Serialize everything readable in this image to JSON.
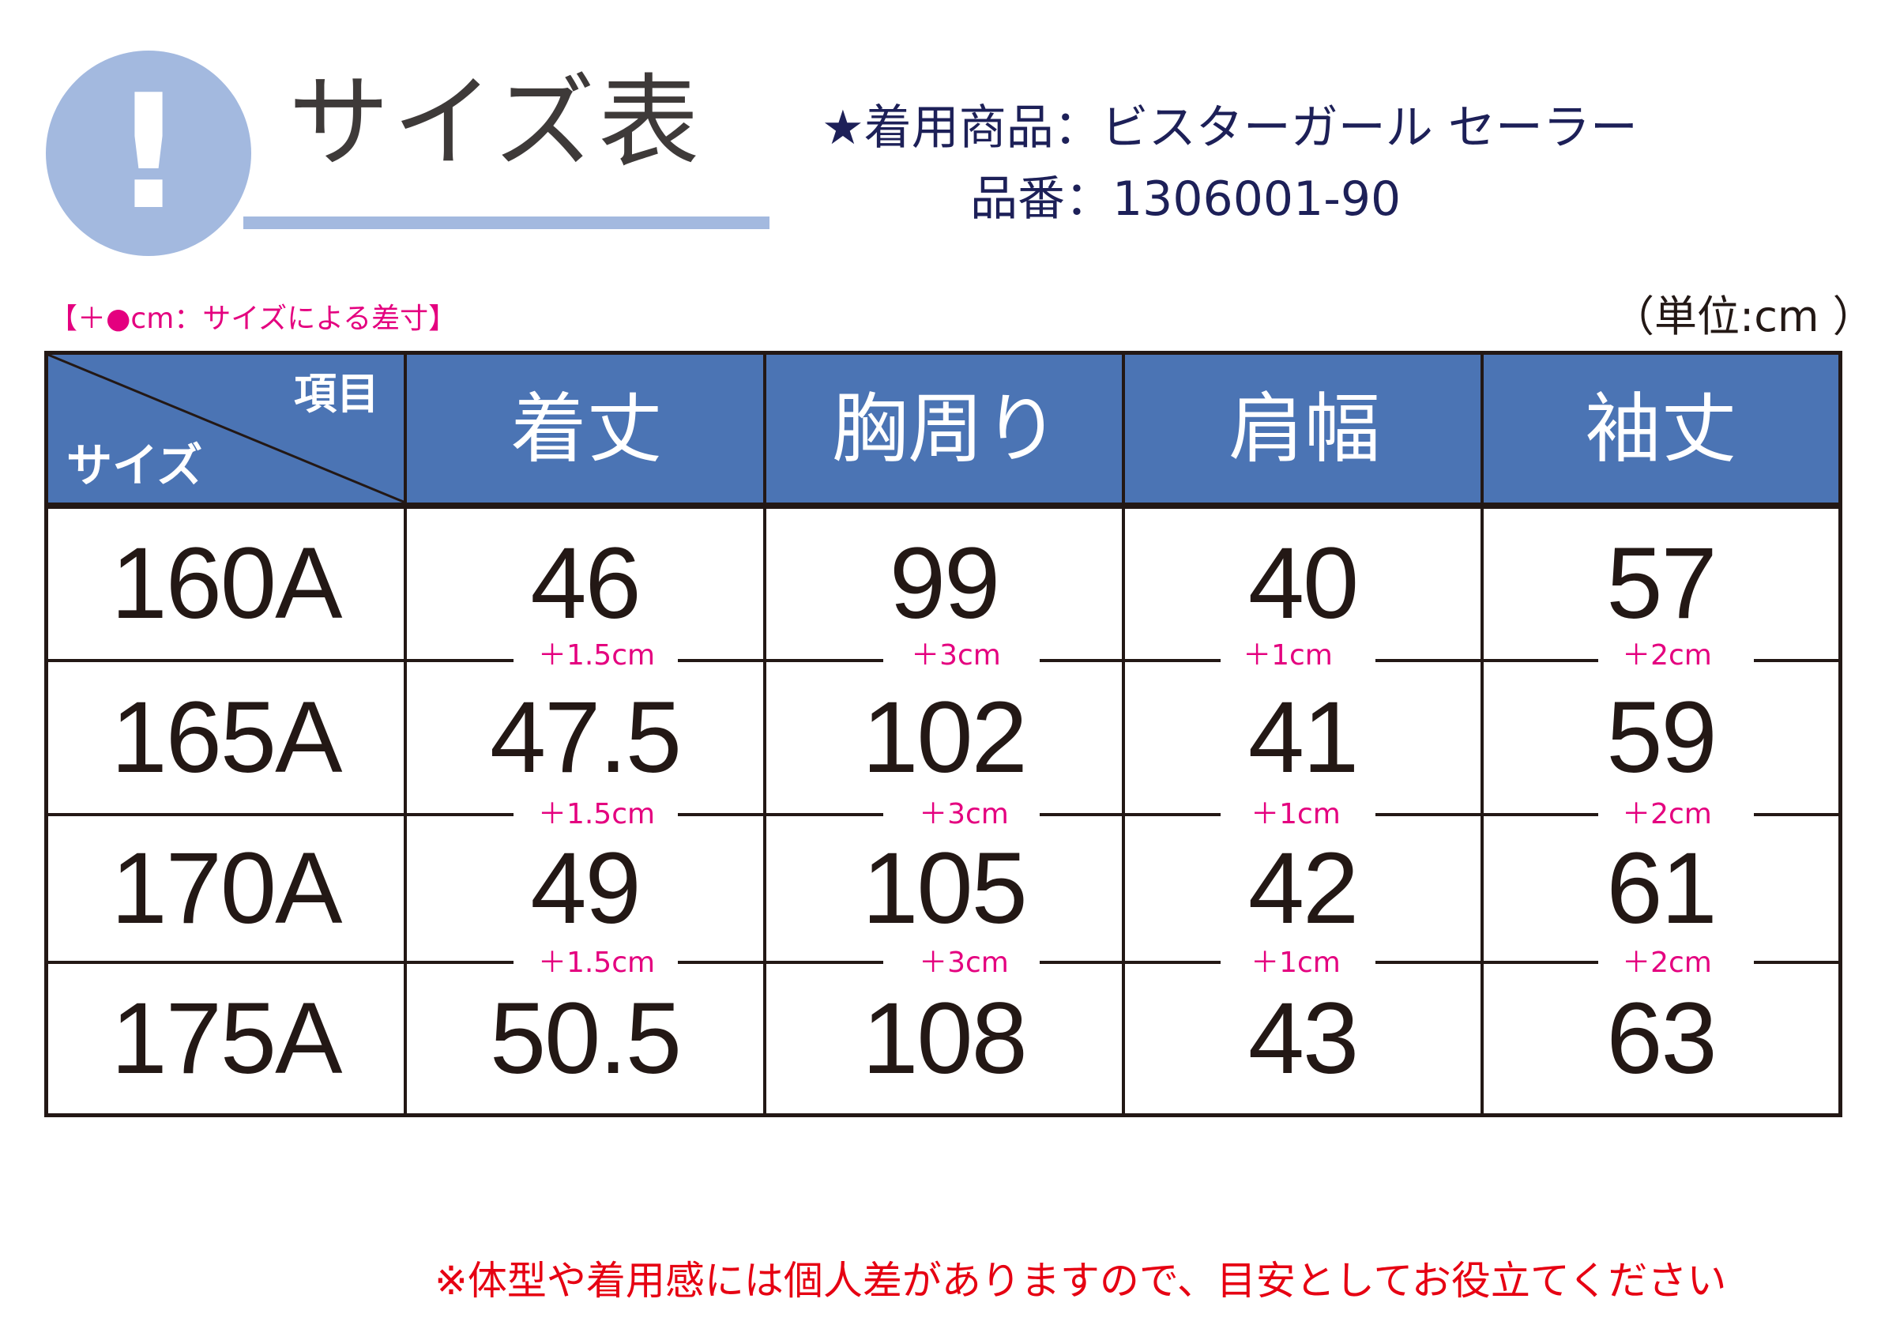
{
  "header": {
    "alert_symbol": "!",
    "title": "サイズ表",
    "product_line": "★着用商品：ビスターガール セーラー",
    "product_code": "品番：1306001-90"
  },
  "notes": {
    "diff_legend": "【＋●cm：サイズによる差寸】",
    "unit": "（単位:cm ）",
    "footer": "※体型や着用感には個人差がありますので、目安としてお役立てください"
  },
  "table": {
    "corner_top": "項目",
    "corner_bottom": "サイズ",
    "columns": [
      "着丈",
      "胸周り",
      "肩幅",
      "袖丈"
    ],
    "rows": [
      {
        "size": "160A",
        "values": [
          "46",
          "99",
          "40",
          "57"
        ]
      },
      {
        "size": "165A",
        "values": [
          "47.5",
          "102",
          "41",
          "59"
        ]
      },
      {
        "size": "170A",
        "values": [
          "49",
          "105",
          "42",
          "61"
        ]
      },
      {
        "size": "175A",
        "values": [
          "50.5",
          "108",
          "43",
          "63"
        ]
      }
    ],
    "diffs": [
      [
        "＋1.5cm",
        "＋3cm",
        "＋1cm",
        "＋2cm"
      ],
      [
        "＋1.5cm",
        "＋3cm",
        "＋1cm",
        "＋2cm"
      ],
      [
        "＋1.5cm",
        "＋3cm",
        "＋1cm",
        "＋2cm"
      ]
    ]
  },
  "colors": {
    "header_blue": "#4b74b4",
    "accent_light_blue": "#a3b9df",
    "navy_text": "#1d2058",
    "magenta": "#e4007f",
    "red": "#e60012"
  }
}
